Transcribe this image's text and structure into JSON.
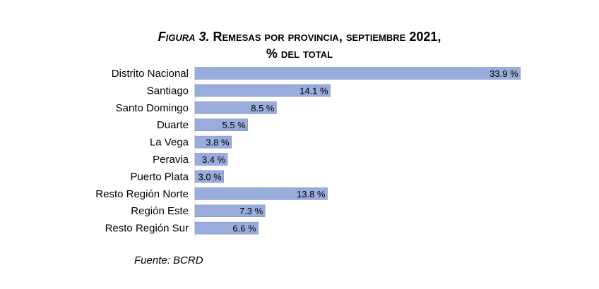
{
  "chart_data": {
    "type": "bar",
    "orientation": "horizontal",
    "title_prefix": "Figura 3.",
    "title_main": "Remesas por provincia, septiembre 2021,",
    "subtitle": "% del total",
    "categories": [
      "Distrito Nacional",
      "Santiago",
      "Santo Domingo",
      "Duarte",
      "La Vega",
      "Peravia",
      "Puerto Plata",
      "Resto Región Norte",
      "Región Este",
      "Resto Región Sur"
    ],
    "values": [
      33.9,
      14.1,
      8.5,
      5.5,
      3.8,
      3.4,
      3.0,
      13.8,
      7.3,
      6.6
    ],
    "data_labels": [
      "33.9 %",
      "14.1 %",
      "8.5 %",
      "5.5 %",
      "3.8 %",
      "3.4 %",
      "3.0 %",
      "13.8 %",
      "7.3 %",
      "6.6 %"
    ],
    "xlim": [
      0,
      34
    ],
    "grid": false,
    "legend": "none",
    "bar_color": "#9aacdb",
    "bar_edge_color": "#7b8fc6",
    "source": "Fuente: BCRD"
  }
}
